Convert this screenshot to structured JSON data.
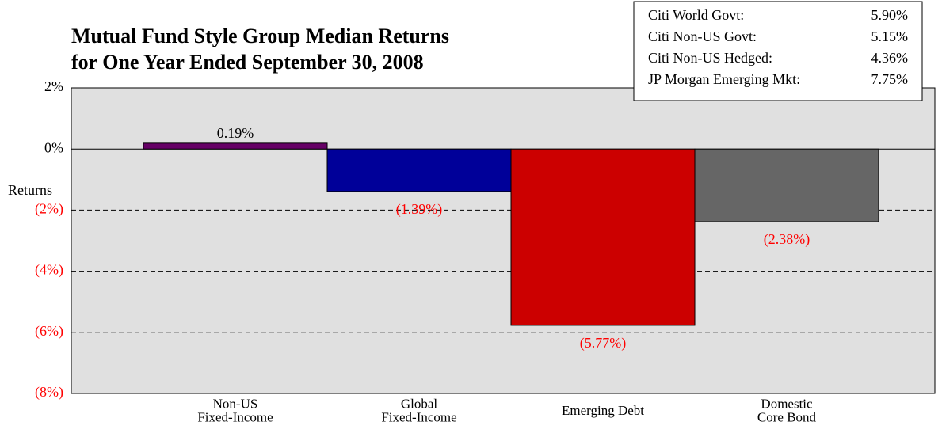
{
  "chart_data": {
    "type": "bar",
    "title": [
      "Mutual Fund Style Group Median Returns",
      "for One Year Ended September 30, 2008"
    ],
    "ylabel": "Returns",
    "categories": [
      [
        "Non-US",
        "Fixed-Income"
      ],
      [
        "Global",
        "Fixed-Income"
      ],
      [
        "Emerging Debt"
      ],
      [
        "Domestic",
        "Core Bond"
      ]
    ],
    "values": [
      0.19,
      -1.39,
      -5.77,
      -2.38
    ],
    "value_labels": [
      "0.19%",
      "(1.39%)",
      "(5.77%)",
      "(2.38%)"
    ],
    "colors": [
      "#660066",
      "#000099",
      "#cc0000",
      "#666666"
    ],
    "negative_label_color": "#ff0000",
    "ylim": [
      -8,
      2
    ],
    "yticks": [
      {
        "value": 2,
        "label": "2%"
      },
      {
        "value": 0,
        "label": "0%"
      },
      {
        "value": -2,
        "label": "(2%)"
      },
      {
        "value": -4,
        "label": "(4%)"
      },
      {
        "value": -6,
        "label": "(6%)"
      },
      {
        "value": -8,
        "label": "(8%)"
      }
    ],
    "grid": true,
    "benchmarks": [
      {
        "name": "Citi World Govt:",
        "value": "5.90%"
      },
      {
        "name": "Citi Non-US Govt:",
        "value": "5.15%"
      },
      {
        "name": "Citi Non-US Hedged:",
        "value": "4.36%"
      },
      {
        "name": "JP Morgan Emerging Mkt:",
        "value": "7.75%"
      }
    ]
  }
}
